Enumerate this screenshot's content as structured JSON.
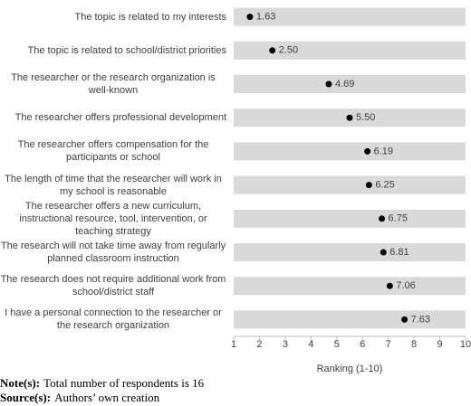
{
  "chart_data": {
    "type": "dot",
    "categories": [
      "The topic is related to my interests",
      "The topic is related to school/district priorities",
      "The researcher or the research organization is well-known",
      "The researcher offers professional development",
      "The researcher offers compensation for the participants or school",
      "The length of time that the researcher will work in my school is reasonable",
      "The researcher offers a new curriculum, instructional resource, tool, intervention, or teaching strategy",
      "The research will not take time away from regularly planned classroom instruction",
      "The research does not require additional work from school/district staff",
      "I have a personal connection to the researcher or the research organization"
    ],
    "values": [
      1.63,
      2.5,
      4.69,
      5.5,
      6.19,
      6.25,
      6.75,
      6.81,
      7.06,
      7.63
    ],
    "value_labels": [
      "1.63",
      "2.50",
      "4.69",
      "5.50",
      "6.19",
      "6.25",
      "6.75",
      "6.81",
      "7.06",
      "7.63"
    ],
    "color": "#000000",
    "xlim": [
      1,
      10
    ],
    "xticks": [
      1,
      2,
      3,
      4,
      5,
      6,
      7,
      8,
      9,
      10
    ],
    "xlabel": "Ranking (1-10)",
    "stripes": true
  },
  "notes": [
    {
      "label": "Note(s):",
      "text": "Total number of respondents is 16"
    },
    {
      "label": "Source(s):",
      "text": "Authors’ own creation"
    }
  ]
}
